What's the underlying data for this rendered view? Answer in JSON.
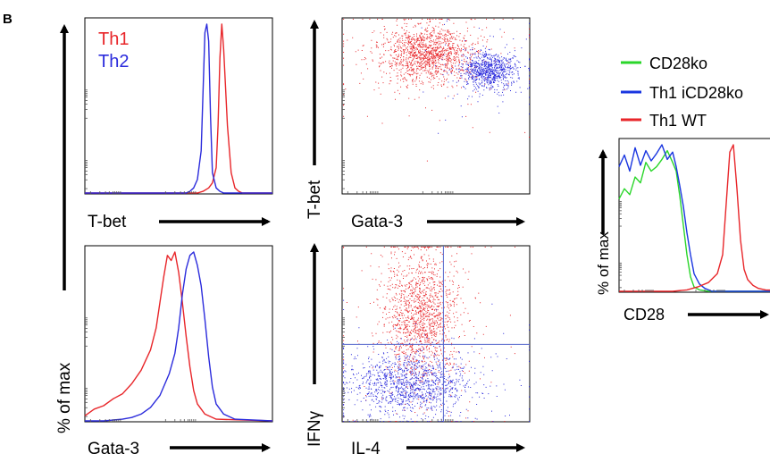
{
  "panel_label": "B",
  "chart_data": [
    {
      "id": "tbet-hist",
      "type": "line",
      "xlabel": "T-bet",
      "ylabel": "% of max",
      "legend": {
        "placement": "top-left",
        "entries": [
          "Th1",
          "Th2"
        ]
      },
      "series": [
        {
          "name": "Th1",
          "color": "#e8262a",
          "x": [
            0,
            60,
            63,
            66,
            68,
            70,
            71,
            72,
            73,
            74,
            76,
            78,
            80,
            82,
            84,
            100
          ],
          "y": [
            0,
            0,
            1,
            3,
            6,
            15,
            40,
            80,
            100,
            85,
            40,
            12,
            3,
            1,
            0,
            0
          ]
        },
        {
          "name": "Th2",
          "color": "#2b2bdc",
          "x": [
            0,
            54,
            56,
            58,
            60,
            62,
            63,
            64,
            65,
            66,
            67,
            68,
            70,
            72,
            74,
            100
          ],
          "y": [
            0,
            0,
            1,
            3,
            8,
            25,
            60,
            95,
            100,
            90,
            45,
            12,
            3,
            1,
            0,
            0
          ]
        }
      ],
      "xlim": [
        0,
        100
      ],
      "ylim": [
        0,
        100
      ]
    },
    {
      "id": "gata3-hist",
      "type": "line",
      "xlabel": "Gata-3",
      "ylabel": "% of max",
      "series": [
        {
          "name": "Th1",
          "color": "#e8262a",
          "x": [
            0,
            5,
            10,
            15,
            20,
            25,
            30,
            35,
            38,
            40,
            42,
            44,
            46,
            48,
            50,
            52,
            54,
            56,
            58,
            60,
            64,
            70,
            100
          ],
          "y": [
            3,
            7,
            9,
            13,
            16,
            22,
            30,
            42,
            55,
            70,
            85,
            98,
            95,
            100,
            88,
            70,
            50,
            32,
            18,
            10,
            4,
            1,
            0
          ]
        },
        {
          "name": "Th2",
          "color": "#2b2bdc",
          "x": [
            0,
            10,
            20,
            25,
            30,
            35,
            40,
            45,
            48,
            50,
            52,
            54,
            56,
            58,
            60,
            62,
            64,
            66,
            68,
            70,
            74,
            80,
            100
          ],
          "y": [
            0,
            0,
            1,
            2,
            4,
            8,
            15,
            28,
            40,
            55,
            75,
            90,
            98,
            100,
            92,
            80,
            60,
            38,
            20,
            10,
            4,
            1,
            0
          ]
        }
      ],
      "xlim": [
        0,
        100
      ],
      "ylim": [
        0,
        100
      ]
    },
    {
      "id": "tbet-gata3-dot",
      "type": "scatter",
      "xlabel": "Gata-3",
      "ylabel": "T-bet",
      "series": [
        {
          "name": "Th1",
          "color": "#e8262a",
          "center": [
            45,
            80
          ],
          "spread": [
            12,
            8
          ],
          "count": 1400
        },
        {
          "name": "Th2",
          "color": "#2b2bdc",
          "center": [
            78,
            70
          ],
          "spread": [
            7,
            5
          ],
          "count": 900
        }
      ],
      "xlim": [
        0,
        100
      ],
      "ylim": [
        0,
        100
      ]
    },
    {
      "id": "ifng-il4-dot",
      "type": "scatter",
      "xlabel": "IL-4",
      "ylabel": "IFNγ",
      "quadrant_gates": {
        "x": 54,
        "y": 44
      },
      "series": [
        {
          "name": "Th1",
          "color": "#e8262a",
          "center": [
            42,
            60
          ],
          "spread": [
            10,
            18
          ],
          "count": 1500
        },
        {
          "name": "Th2",
          "color": "#2b2bdc",
          "center": [
            36,
            22
          ],
          "spread": [
            15,
            9
          ],
          "count": 1300
        }
      ],
      "xlim": [
        0,
        100
      ],
      "ylim": [
        0,
        100
      ]
    },
    {
      "id": "cd28-hist",
      "type": "line",
      "xlabel": "CD28",
      "ylabel": "% of max",
      "legend": {
        "placement": "top",
        "entries": [
          "CD28ko",
          "Th1 iCD28ko",
          "Th1 WT"
        ]
      },
      "series": [
        {
          "name": "CD28ko",
          "color": "#2ad62a",
          "x": [
            0,
            3,
            6,
            9,
            12,
            15,
            18,
            21,
            24,
            27,
            30,
            32,
            34,
            36,
            38,
            40,
            42,
            45,
            50,
            100
          ],
          "y": [
            63,
            70,
            66,
            78,
            74,
            88,
            82,
            85,
            90,
            96,
            88,
            82,
            65,
            45,
            25,
            10,
            3,
            1,
            0,
            0
          ]
        },
        {
          "name": "Th1 iCD28ko",
          "color": "#1a36e0",
          "x": [
            0,
            3,
            6,
            9,
            12,
            15,
            18,
            21,
            24,
            27,
            30,
            32,
            34,
            36,
            38,
            40,
            42,
            45,
            48,
            52,
            100
          ],
          "y": [
            85,
            93,
            82,
            98,
            86,
            96,
            89,
            94,
            100,
            90,
            95,
            85,
            72,
            58,
            40,
            25,
            12,
            5,
            2,
            0,
            0
          ]
        },
        {
          "name": "Th1 WT",
          "color": "#e8262a",
          "x": [
            0,
            20,
            30,
            38,
            44,
            50,
            55,
            58,
            60,
            62,
            64,
            66,
            68,
            70,
            72,
            75,
            78,
            82,
            100
          ],
          "y": [
            0,
            0,
            0,
            1,
            3,
            6,
            12,
            25,
            60,
            95,
            100,
            70,
            35,
            15,
            8,
            4,
            2,
            1,
            0
          ]
        }
      ],
      "xlim": [
        0,
        100
      ],
      "ylim": [
        0,
        100
      ]
    }
  ]
}
